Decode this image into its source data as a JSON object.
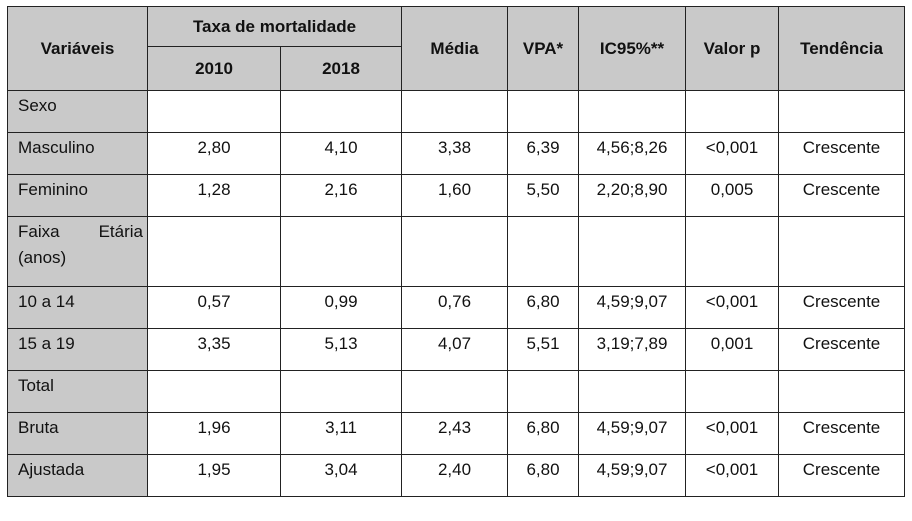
{
  "header": {
    "variaveis": "Variáveis",
    "taxa": "Taxa de mortalidade",
    "year1": "2010",
    "year2": "2018",
    "media": "Média",
    "vpa": "VPA*",
    "ic": "IC95%**",
    "valor_p": "Valor p",
    "tendencia": "Tendência"
  },
  "sections": {
    "sexo": "Sexo",
    "faixa_line1": "Faixa Etária",
    "faixa_word1": "Faixa",
    "faixa_word2": "Etária",
    "faixa_line2": "(anos)",
    "total": "Total"
  },
  "rows": {
    "masculino": {
      "label": "Masculino",
      "v2010": "2,80",
      "v2018": "4,10",
      "media": "3,38",
      "vpa": "6,39",
      "ic": "4,56;8,26",
      "p": "<0,001",
      "tend": "Crescente"
    },
    "feminino": {
      "label": "Feminino",
      "v2010": "1,28",
      "v2018": "2,16",
      "media": "1,60",
      "vpa": "5,50",
      "ic": "2,20;8,90",
      "p": "0,005",
      "tend": "Crescente"
    },
    "age_10_14": {
      "label": "10 a 14",
      "v2010": "0,57",
      "v2018": "0,99",
      "media": "0,76",
      "vpa": "6,80",
      "ic": "4,59;9,07",
      "p": "<0,001",
      "tend": "Crescente"
    },
    "age_15_19": {
      "label": "15 a 19",
      "v2010": "3,35",
      "v2018": "5,13",
      "media": "4,07",
      "vpa": "5,51",
      "ic": "3,19;7,89",
      "p": "0,001",
      "tend": "Crescente"
    },
    "bruta": {
      "label": "Bruta",
      "v2010": "1,96",
      "v2018": "3,11",
      "media": "2,43",
      "vpa": "6,80",
      "ic": "4,59;9,07",
      "p": "<0,001",
      "tend": "Crescente"
    },
    "ajustada": {
      "label": "Ajustada",
      "v2010": "1,95",
      "v2018": "3,04",
      "media": "2,40",
      "vpa": "6,80",
      "ic": "4,59;9,07",
      "p": "<0,001",
      "tend": "Crescente"
    }
  }
}
